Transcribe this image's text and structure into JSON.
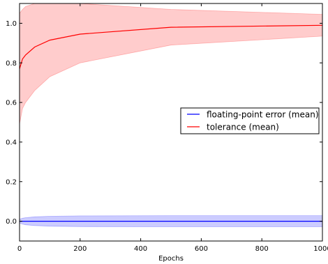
{
  "chart_data": {
    "type": "line",
    "title": "",
    "xlabel": "Epochs",
    "ylabel": "",
    "xlim": [
      0,
      1000
    ],
    "ylim": [
      -0.1,
      1.1
    ],
    "xticks": [
      0,
      200,
      400,
      600,
      800,
      1000
    ],
    "yticks": [
      0.0,
      0.2,
      0.4,
      0.6,
      0.8,
      1.0
    ],
    "x_tick_labels": [
      "0",
      "200",
      "400",
      "600",
      "800",
      "1000"
    ],
    "y_tick_labels": [
      "0.0",
      "0.2",
      "0.4",
      "0.6",
      "0.8",
      "1.0"
    ],
    "grid": false,
    "legend_position": "center-right",
    "series": [
      {
        "name": "floating-point error (mean)",
        "color": "#0000ff",
        "band_color": "#ccccff",
        "x": [
          0,
          10,
          20,
          50,
          100,
          200,
          500,
          1000
        ],
        "y": [
          0.0,
          0.0,
          0.0,
          0.0,
          0.0,
          0.0,
          0.0,
          0.0
        ],
        "lower": [
          -0.01,
          -0.015,
          -0.018,
          -0.022,
          -0.025,
          -0.027,
          -0.028,
          -0.028
        ],
        "upper": [
          0.01,
          0.015,
          0.018,
          0.022,
          0.025,
          0.027,
          0.028,
          0.028
        ]
      },
      {
        "name": "tolerance (mean)",
        "color": "#ff0000",
        "band_color": "#ffcccc",
        "x": [
          0,
          10,
          20,
          50,
          100,
          200,
          500,
          1000
        ],
        "y": [
          0.77,
          0.82,
          0.84,
          0.88,
          0.915,
          0.945,
          0.98,
          0.99
        ],
        "lower": [
          0.49,
          0.57,
          0.6,
          0.66,
          0.73,
          0.8,
          0.89,
          0.935
        ],
        "upper": [
          1.05,
          1.07,
          1.085,
          1.1,
          1.1,
          1.1,
          1.07,
          1.045
        ]
      }
    ]
  },
  "colors": {
    "background": "#ffffff",
    "axes": "#000000"
  }
}
